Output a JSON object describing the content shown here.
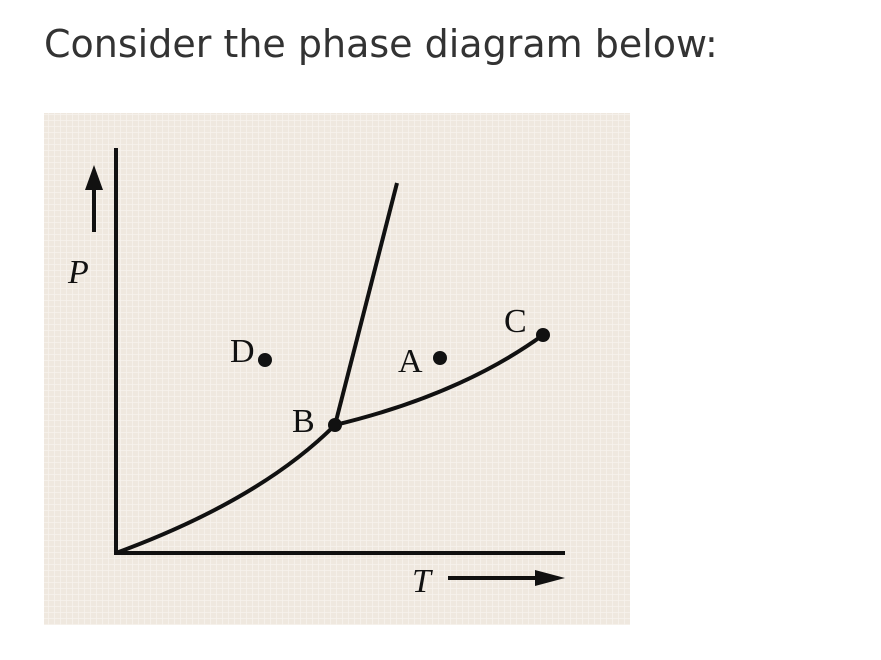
{
  "question": "Consider the phase diagram below:",
  "diagram": {
    "axis_labels": {
      "y": "P",
      "x": "T"
    },
    "points": [
      {
        "label": "A"
      },
      {
        "label": "B"
      },
      {
        "label": "C"
      },
      {
        "label": "D"
      }
    ]
  }
}
